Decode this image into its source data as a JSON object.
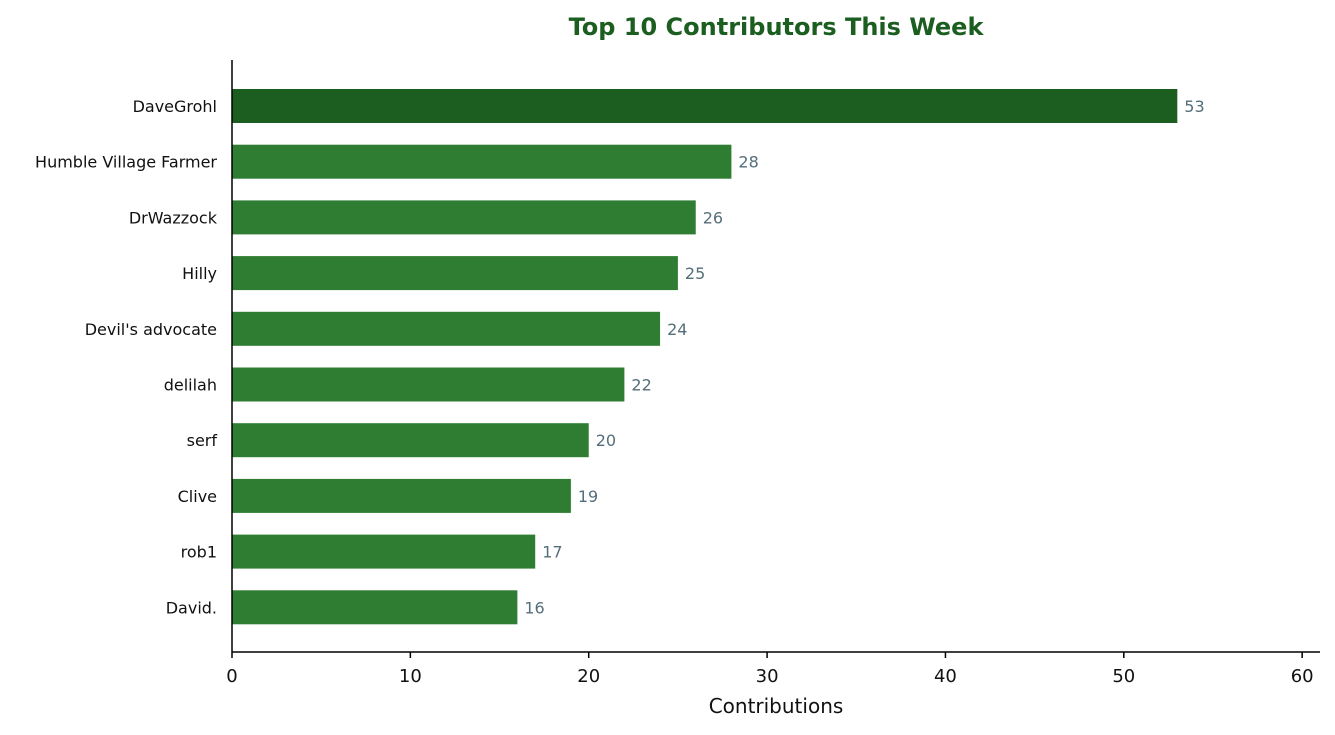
{
  "chart_data": {
    "type": "bar",
    "orientation": "horizontal",
    "title": "Top 10 Contributors This Week",
    "xlabel": "Contributions",
    "ylabel": "",
    "categories": [
      "DaveGrohl",
      "Humble Village Farmer",
      "DrWazzock",
      "Hilly",
      "Devil's advocate",
      "delilah",
      "serf",
      "Clive",
      "rob1",
      "David."
    ],
    "values": [
      53,
      28,
      26,
      25,
      24,
      22,
      20,
      19,
      17,
      16
    ],
    "xlim": [
      0,
      61
    ],
    "xticks": [
      0,
      10,
      20,
      30,
      40,
      50,
      60
    ],
    "grid": false,
    "legend": "none",
    "colors": {
      "title": "#1b5e20",
      "top_bar": "#1b5e20",
      "bar": "#2e7d32",
      "value_label": "#546e7a",
      "axis": "#000000"
    }
  }
}
